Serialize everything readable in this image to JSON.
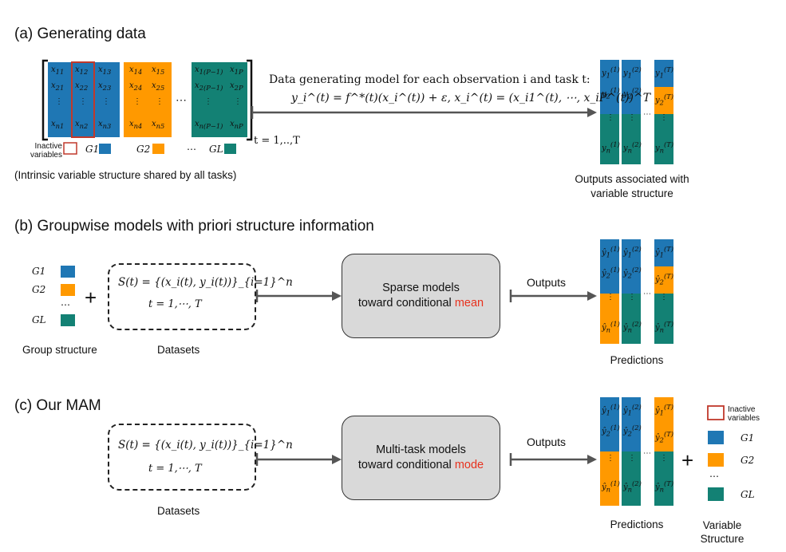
{
  "sections": {
    "a_title": "(a) Generating data",
    "b_title": "(b) Groupwise models with priori structure information",
    "c_title": "(c) Our MAM"
  },
  "panel_a": {
    "model_text": "Data generating model for each observation i and task t:",
    "equation": "y_i^(t) = f^*(t)(x_i^(t)) + ε,   x_i^(t) = (x_i1^(t), ⋯, x_iP^(t))^T",
    "task_range": "t = 1,..,T",
    "legend": {
      "inactive": "Inactive variables",
      "g1": "G1",
      "g2": "G2",
      "ellipsis": "⋯",
      "gl": "GL"
    },
    "shared_caption": "(Intrinsic variable structure shared by all tasks)",
    "outputs_caption": "Outputs associated with variable structure"
  },
  "panel_b": {
    "groups": [
      "G1",
      "G2",
      "⋯",
      "GL"
    ],
    "plus": "+",
    "dataset_eq": "S(t) = {(x_i(t), y_i(t))}_{i=1}^n",
    "dataset_range": "t = 1,⋯, T",
    "model_line1": "Sparse models",
    "model_line2": "toward conditional",
    "model_highlight": "mean",
    "arrow_label": "Outputs",
    "group_caption": "Group structure",
    "dataset_caption": "Datasets",
    "pred_caption": "Predictions"
  },
  "panel_c": {
    "dataset_eq": "S(t) = {(x_i(t), y_i(t))}_{i=1}^n",
    "dataset_range": "t = 1,⋯, T",
    "model_line1": "Multi-task models",
    "model_line2": "toward conditional",
    "model_highlight": "mode",
    "arrow_label": "Outputs",
    "dataset_caption": "Datasets",
    "pred_caption": "Predictions",
    "plus": "+",
    "legend": {
      "inactive": "Inactive variables",
      "g1": "G1",
      "g2": "G2",
      "ellipsis": "⋯",
      "gl": "GL"
    },
    "structure_caption": "Variable Structure"
  },
  "colors": {
    "blue": "#1f77b4",
    "orange": "#ff9900",
    "teal": "#138174",
    "inactive": "#c0392b",
    "model_box": "#d9d9d9"
  }
}
